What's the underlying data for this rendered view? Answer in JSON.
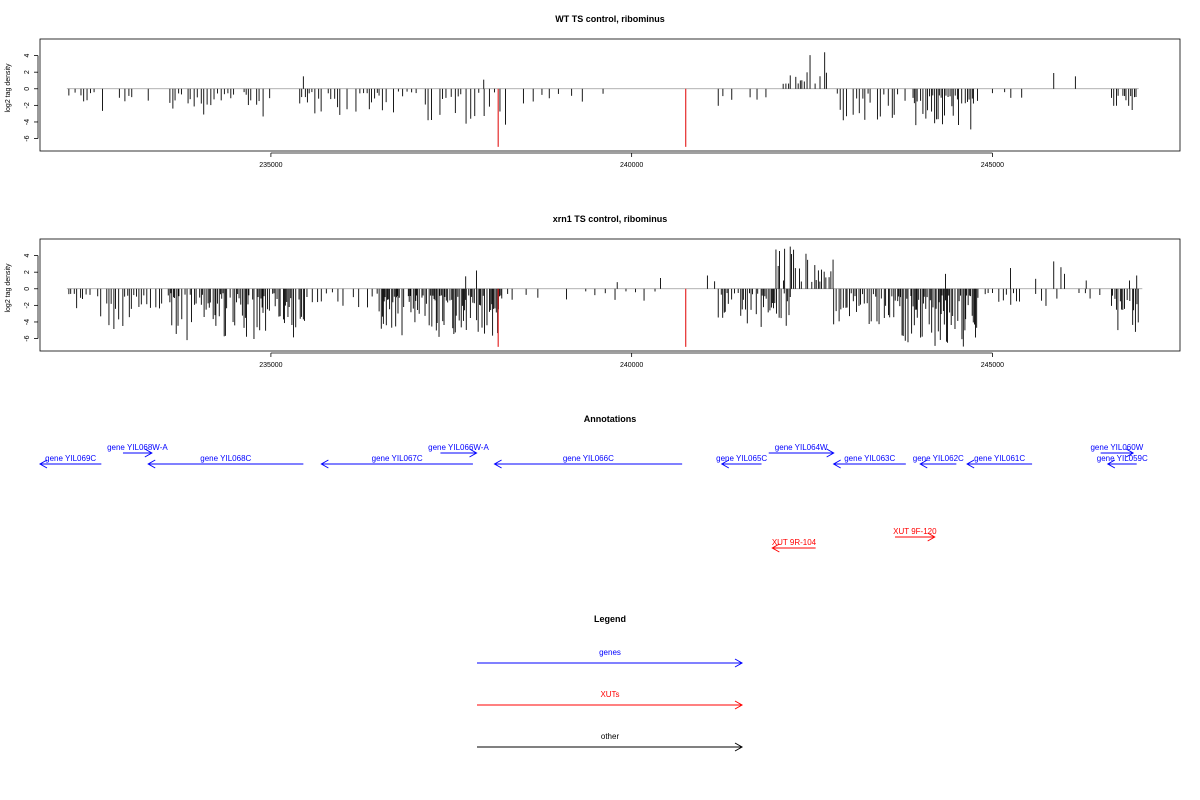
{
  "chart_data": [
    {
      "type": "bar",
      "title": "WT TS control, ribominus",
      "ylabel": "log2 tag density",
      "xlim": [
        231800,
        247600
      ],
      "ylim": [
        -7.5,
        6
      ],
      "xticks": [
        235000,
        240000,
        245000
      ],
      "xtick_labels": [
        "235000",
        "240000",
        "245000"
      ],
      "yticks": [
        4,
        2,
        0,
        -2,
        -4,
        -6
      ],
      "ytick_labels": [
        "4",
        "2",
        "0",
        "-2",
        "-4",
        "-6"
      ],
      "baseline_color": "#999999",
      "bar_color": "#000000",
      "marker_color": "#e00000",
      "markers": [
        {
          "x": 238150,
          "y": -7
        },
        {
          "x": 240750,
          "y": -7
        }
      ],
      "segments": [
        {
          "start": 232200,
          "end": 232700,
          "step": 42,
          "min": 0.4,
          "max": 3.6,
          "sign": -1,
          "seed": 11
        },
        {
          "start": 232900,
          "end": 233100,
          "step": 50,
          "min": 0.5,
          "max": 3.4,
          "sign": -1,
          "seed": 12
        },
        {
          "start": 233300,
          "end": 233400,
          "step": 100,
          "min": 1.2,
          "max": 2.0,
          "sign": -1,
          "seed": 13
        },
        {
          "start": 233600,
          "end": 235000,
          "step": 45,
          "min": 0.4,
          "max": 3.8,
          "sign": -1,
          "seed": 14
        },
        {
          "start": 235400,
          "end": 236600,
          "step": 40,
          "min": 0.4,
          "max": 3.2,
          "sign": -1,
          "seed": 15
        },
        {
          "start": 236700,
          "end": 238300,
          "step": 55,
          "min": 0.3,
          "max": 4.5,
          "sign": -1,
          "seed": 16
        },
        {
          "start": 238500,
          "end": 239800,
          "step": 140,
          "min": 0.6,
          "max": 2.2,
          "sign": -1,
          "seed": 17
        },
        {
          "start": 241200,
          "end": 241900,
          "step": 90,
          "min": 0.5,
          "max": 2.3,
          "sign": -1,
          "seed": 18
        },
        {
          "start": 242100,
          "end": 242700,
          "step": 30,
          "min": 0.6,
          "max": 4.7,
          "sign": 1,
          "seed": 19
        },
        {
          "start": 242850,
          "end": 243800,
          "step": 40,
          "min": 0.5,
          "max": 4.0,
          "sign": -1,
          "seed": 20
        },
        {
          "start": 243900,
          "end": 244800,
          "step": 24,
          "min": 0.8,
          "max": 5.2,
          "sign": -1,
          "seed": 21
        },
        {
          "start": 245000,
          "end": 245600,
          "step": 130,
          "min": 0.4,
          "max": 1.4,
          "sign": -1,
          "seed": 22
        },
        {
          "start": 246650,
          "end": 247000,
          "step": 30,
          "min": 0.6,
          "max": 3.1,
          "sign": -1,
          "seed": 23
        }
      ],
      "points": [
        {
          "x": 235450,
          "y": 1.5
        },
        {
          "x": 237950,
          "y": 1.1
        },
        {
          "x": 245850,
          "y": 1.9
        },
        {
          "x": 246150,
          "y": 1.5
        }
      ]
    },
    {
      "type": "bar",
      "title": "xrn1 TS control, ribominus",
      "ylabel": "log2 tag density",
      "xlim": [
        231800,
        247600
      ],
      "ylim": [
        -7.5,
        6
      ],
      "xticks": [
        235000,
        240000,
        245000
      ],
      "xtick_labels": [
        "235000",
        "240000",
        "245000"
      ],
      "yticks": [
        4,
        2,
        0,
        -2,
        -4,
        -6
      ],
      "ytick_labels": [
        "4",
        "2",
        "0",
        "-2",
        "-4",
        "-6"
      ],
      "baseline_color": "#999999",
      "bar_color": "#000000",
      "marker_color": "#e00000",
      "markers": [
        {
          "x": 238150,
          "y": -7
        },
        {
          "x": 240750,
          "y": -7
        }
      ],
      "segments": [
        {
          "start": 232200,
          "end": 232500,
          "step": 40,
          "min": 0.6,
          "max": 2.8,
          "sign": -1,
          "seed": 31
        },
        {
          "start": 232600,
          "end": 233100,
          "step": 35,
          "min": 0.6,
          "max": 5.3,
          "sign": -1,
          "seed": 32
        },
        {
          "start": 233100,
          "end": 233600,
          "step": 40,
          "min": 0.5,
          "max": 2.6,
          "sign": -1,
          "seed": 33
        },
        {
          "start": 233600,
          "end": 235500,
          "step": 20,
          "min": 0.5,
          "max": 6.2,
          "sign": -1,
          "seed": 34
        },
        {
          "start": 235500,
          "end": 236500,
          "step": 60,
          "min": 0.4,
          "max": 2.5,
          "sign": -1,
          "seed": 35
        },
        {
          "start": 236500,
          "end": 238200,
          "step": 16,
          "min": 0.8,
          "max": 5.9,
          "sign": -1,
          "seed": 36
        },
        {
          "start": 238200,
          "end": 238600,
          "step": 60,
          "min": 0.4,
          "max": 2.0,
          "sign": -1,
          "seed": 37
        },
        {
          "start": 238700,
          "end": 240600,
          "step": 110,
          "min": 0.3,
          "max": 1.6,
          "sign": -1,
          "seed": 38
        },
        {
          "start": 241200,
          "end": 242200,
          "step": 22,
          "min": 0.5,
          "max": 4.6,
          "sign": -1,
          "seed": 39
        },
        {
          "start": 242000,
          "end": 242800,
          "step": 22,
          "min": 0.8,
          "max": 5.4,
          "sign": 1,
          "seed": 40
        },
        {
          "start": 242800,
          "end": 243700,
          "step": 26,
          "min": 0.5,
          "max": 4.3,
          "sign": -1,
          "seed": 41
        },
        {
          "start": 243700,
          "end": 244800,
          "step": 16,
          "min": 0.8,
          "max": 7.0,
          "sign": -1,
          "seed": 42
        },
        {
          "start": 244900,
          "end": 245400,
          "step": 50,
          "min": 0.5,
          "max": 2.8,
          "sign": -1,
          "seed": 43
        },
        {
          "start": 245600,
          "end": 246000,
          "step": 60,
          "min": 0.4,
          "max": 2.2,
          "sign": -1,
          "seed": 44
        },
        {
          "start": 246200,
          "end": 246500,
          "step": 80,
          "min": 0.3,
          "max": 1.4,
          "sign": -1,
          "seed": 45
        },
        {
          "start": 246650,
          "end": 247050,
          "step": 18,
          "min": 0.8,
          "max": 5.3,
          "sign": -1,
          "seed": 46
        }
      ],
      "points": [
        {
          "x": 237700,
          "y": 1.5
        },
        {
          "x": 237850,
          "y": 2.2
        },
        {
          "x": 239800,
          "y": 0.8
        },
        {
          "x": 240400,
          "y": 1.3
        },
        {
          "x": 241050,
          "y": 1.6
        },
        {
          "x": 241150,
          "y": 0.9
        },
        {
          "x": 244350,
          "y": 1.8
        },
        {
          "x": 245250,
          "y": 2.5
        },
        {
          "x": 245600,
          "y": 1.2
        },
        {
          "x": 245850,
          "y": 3.3
        },
        {
          "x": 245950,
          "y": 2.6
        },
        {
          "x": 246000,
          "y": 1.8
        },
        {
          "x": 246300,
          "y": 1.0
        },
        {
          "x": 246900,
          "y": 1.0
        },
        {
          "x": 247000,
          "y": 1.6
        }
      ]
    }
  ],
  "annotations": {
    "title": "Annotations",
    "genes_color": "#0000ff",
    "xuts_color": "#ff0000",
    "genes": [
      {
        "label": "gene YIL069C",
        "start": 231800,
        "end": 232650,
        "direction": "left",
        "row": 1
      },
      {
        "label": "gene YIL068W-A",
        "start": 232950,
        "end": 233350,
        "direction": "right",
        "row": 0
      },
      {
        "label": "gene YIL068C",
        "start": 233300,
        "end": 235450,
        "direction": "left",
        "row": 1
      },
      {
        "label": "gene YIL067C",
        "start": 235700,
        "end": 237800,
        "direction": "left",
        "row": 1
      },
      {
        "label": "gene YIL066W-A",
        "start": 237350,
        "end": 237850,
        "direction": "right",
        "row": 0
      },
      {
        "label": "gene YIL066C",
        "start": 238100,
        "end": 240700,
        "direction": "left",
        "row": 1
      },
      {
        "label": "gene YIL065C",
        "start": 241250,
        "end": 241800,
        "direction": "left",
        "row": 1
      },
      {
        "label": "gene YIL064W",
        "start": 241900,
        "end": 242800,
        "direction": "right",
        "row": 0
      },
      {
        "label": "gene YIL063C",
        "start": 242800,
        "end": 243800,
        "direction": "left",
        "row": 1
      },
      {
        "label": "gene YIL062C",
        "start": 244000,
        "end": 244500,
        "direction": "left",
        "row": 1
      },
      {
        "label": "gene YIL061C",
        "start": 244650,
        "end": 245550,
        "direction": "left",
        "row": 1
      },
      {
        "label": "gene YIL060W",
        "start": 246500,
        "end": 246950,
        "direction": "right",
        "row": 0
      },
      {
        "label": "gene YIL059C",
        "start": 246600,
        "end": 247000,
        "direction": "left",
        "row": 1
      }
    ],
    "xuts": [
      {
        "label": "XUT 9R-104",
        "start": 241950,
        "end": 242550,
        "direction": "left",
        "row": 3
      },
      {
        "label": "XUT 9F-120",
        "start": 243650,
        "end": 244200,
        "direction": "right",
        "row": 2
      }
    ]
  },
  "legend": {
    "title": "Legend",
    "items": [
      {
        "label": "genes",
        "color": "#0000ff"
      },
      {
        "label": "XUTs",
        "color": "#ff0000"
      },
      {
        "label": "other",
        "color": "#000000"
      }
    ]
  }
}
